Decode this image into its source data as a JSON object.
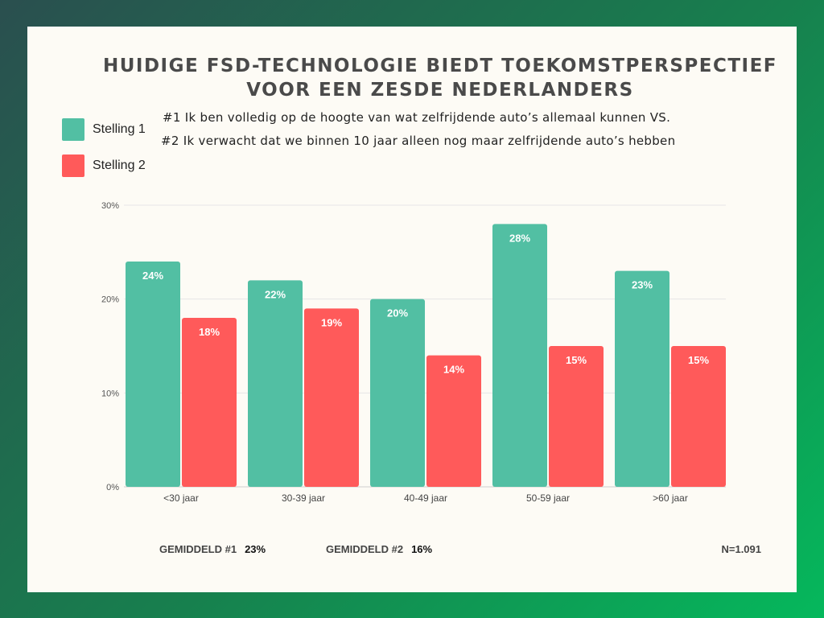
{
  "title_line1": "HUIDIGE FSD-TECHNOLOGIE BIEDT TOEKOMSTPERSPECTIEF",
  "title_line2": "VOOR EEN ZESDE NEDERLANDERS",
  "statement1": "#1 Ik ben volledig op de hoogte van wat zelfrijdende auto’s allemaal kunnen VS.",
  "statement2": "#2 Ik verwacht dat we binnen 10 jaar alleen nog maar zelfrijdende auto’s hebben",
  "legend": [
    {
      "label": "Stelling 1",
      "color": "#52bfa3"
    },
    {
      "label": "Stelling 2",
      "color": "#ff5a5a"
    }
  ],
  "footer": {
    "avg1_label": "GEMIDDELD #1",
    "avg1_value": "23%",
    "avg2_label": "GEMIDDELD #2",
    "avg2_value": "16%",
    "n": "N=1.091"
  },
  "chart_data": {
    "type": "bar",
    "categories": [
      "<30 jaar",
      "30-39 jaar",
      "40-49 jaar",
      "50-59 jaar",
      ">60 jaar"
    ],
    "series": [
      {
        "name": "Stelling 1",
        "color": "#52bfa3",
        "values": [
          24,
          22,
          20,
          28,
          23
        ]
      },
      {
        "name": "Stelling 2",
        "color": "#ff5a5a",
        "values": [
          18,
          19,
          14,
          15,
          15
        ]
      }
    ],
    "yticks": [
      0,
      10,
      20,
      30
    ],
    "ytick_labels": [
      "0%",
      "10%",
      "20%",
      "30%"
    ],
    "value_suffix": "%",
    "ylim": [
      0,
      30
    ],
    "grid": true
  }
}
